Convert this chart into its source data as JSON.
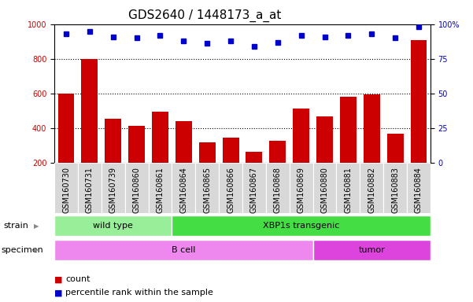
{
  "title": "GDS2640 / 1448173_a_at",
  "samples": [
    "GSM160730",
    "GSM160731",
    "GSM160739",
    "GSM160860",
    "GSM160861",
    "GSM160864",
    "GSM160865",
    "GSM160866",
    "GSM160867",
    "GSM160868",
    "GSM160869",
    "GSM160880",
    "GSM160881",
    "GSM160882",
    "GSM160883",
    "GSM160884"
  ],
  "counts": [
    600,
    800,
    455,
    415,
    495,
    443,
    320,
    345,
    265,
    330,
    515,
    470,
    580,
    595,
    370,
    910
  ],
  "percentiles": [
    93,
    95,
    91,
    90,
    92,
    88,
    86,
    88,
    84,
    87,
    92,
    91,
    92,
    93,
    90,
    98
  ],
  "bar_color": "#cc0000",
  "dot_color": "#0000cc",
  "ylim_left": [
    200,
    1000
  ],
  "ylim_right": [
    0,
    100
  ],
  "yticks_left": [
    200,
    400,
    600,
    800,
    1000
  ],
  "yticks_right": [
    0,
    25,
    50,
    75,
    100
  ],
  "grid_values": [
    400,
    600,
    800
  ],
  "strain_groups": [
    {
      "label": "wild type",
      "start": 0,
      "end": 5,
      "color": "#99ee99"
    },
    {
      "label": "XBP1s transgenic",
      "start": 5,
      "end": 16,
      "color": "#44dd44"
    }
  ],
  "specimen_groups": [
    {
      "label": "B cell",
      "start": 0,
      "end": 11,
      "color": "#ee88ee"
    },
    {
      "label": "tumor",
      "start": 11,
      "end": 16,
      "color": "#dd44dd"
    }
  ],
  "legend_count_color": "#cc0000",
  "legend_dot_color": "#0000cc",
  "axis_left_color": "#cc0000",
  "axis_right_color": "#0000cc",
  "title_fontsize": 11,
  "tick_fontsize": 7,
  "label_fontsize": 8
}
